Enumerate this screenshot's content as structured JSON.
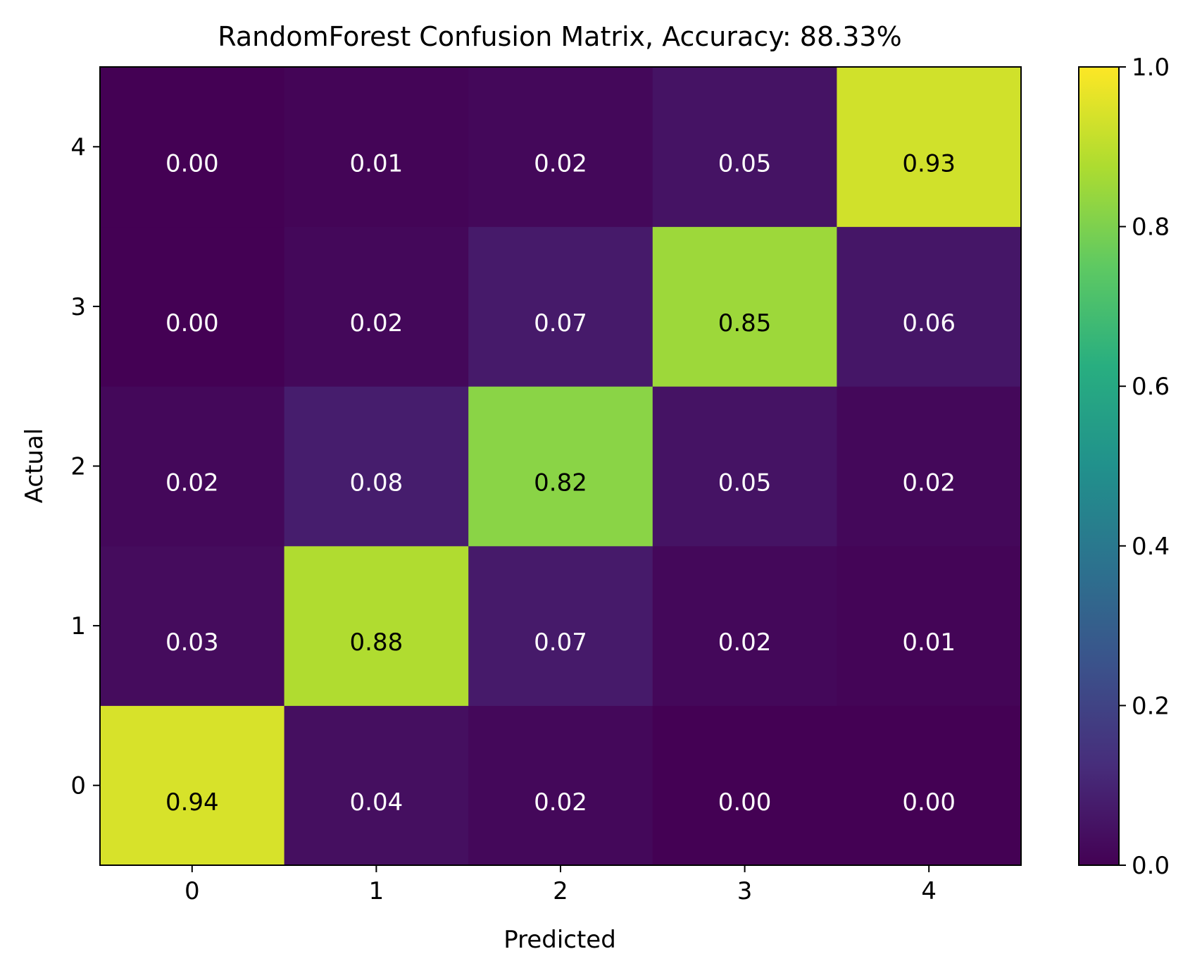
{
  "chart_data": {
    "type": "heatmap",
    "title": "RandomForest Confusion Matrix, Accuracy: 88.33%",
    "xlabel": "Predicted",
    "ylabel": "Actual",
    "x_categories": [
      "0",
      "1",
      "2",
      "3",
      "4"
    ],
    "y_categories": [
      "0",
      "1",
      "2",
      "3",
      "4"
    ],
    "values": [
      [
        0.94,
        0.04,
        0.02,
        0.0,
        0.0
      ],
      [
        0.03,
        0.88,
        0.07,
        0.02,
        0.01
      ],
      [
        0.02,
        0.08,
        0.82,
        0.05,
        0.02
      ],
      [
        0.0,
        0.02,
        0.07,
        0.85,
        0.06
      ],
      [
        0.0,
        0.01,
        0.02,
        0.05,
        0.93
      ]
    ],
    "value_format_decimals": 2,
    "colormap": "viridis",
    "colorbar": {
      "range": [
        0.0,
        1.0
      ],
      "ticks": [
        0.0,
        0.2,
        0.4,
        0.6,
        0.8,
        1.0
      ],
      "tick_labels": [
        "0.0",
        "0.2",
        "0.4",
        "0.6",
        "0.8",
        "1.0"
      ]
    },
    "text_colors": {
      "dark_cell": "#ffffff",
      "light_cell": "#000000"
    },
    "grid": false
  }
}
